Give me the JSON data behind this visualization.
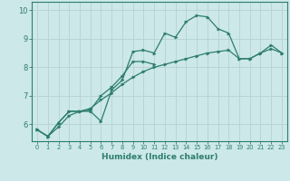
{
  "xlabel": "Humidex (Indice chaleur)",
  "x_values": [
    0,
    1,
    2,
    3,
    4,
    5,
    6,
    7,
    8,
    9,
    10,
    11,
    12,
    13,
    14,
    15,
    16,
    17,
    18,
    19,
    20,
    21,
    22,
    23
  ],
  "line1": [
    5.8,
    5.57,
    5.9,
    6.3,
    6.45,
    6.45,
    6.1,
    7.2,
    7.55,
    8.55,
    8.6,
    8.5,
    9.2,
    9.05,
    9.6,
    9.82,
    9.77,
    9.35,
    9.2,
    8.3,
    8.3,
    8.5,
    8.78,
    8.5
  ],
  "line2": [
    5.8,
    5.57,
    6.05,
    6.45,
    6.45,
    6.5,
    7.0,
    7.3,
    7.7,
    8.2,
    8.2,
    8.1,
    null,
    null,
    null,
    null,
    null,
    null,
    null,
    null,
    null,
    null,
    null,
    null
  ],
  "line3": [
    5.8,
    5.57,
    6.05,
    6.45,
    6.45,
    6.55,
    6.85,
    7.1,
    7.4,
    7.65,
    7.85,
    8.0,
    8.1,
    8.2,
    8.3,
    8.4,
    8.5,
    8.55,
    8.6,
    8.3,
    8.3,
    8.5,
    8.65,
    8.5
  ],
  "color": "#2d7d6e",
  "bg_color": "#cce8e8",
  "grid_color": "#b8d4d4",
  "ylim": [
    5.4,
    10.3
  ],
  "xlim": [
    -0.5,
    23.5
  ],
  "yticks": [
    6,
    7,
    8,
    9,
    10
  ],
  "xticks": [
    0,
    1,
    2,
    3,
    4,
    5,
    6,
    7,
    8,
    9,
    10,
    11,
    12,
    13,
    14,
    15,
    16,
    17,
    18,
    19,
    20,
    21,
    22,
    23
  ]
}
